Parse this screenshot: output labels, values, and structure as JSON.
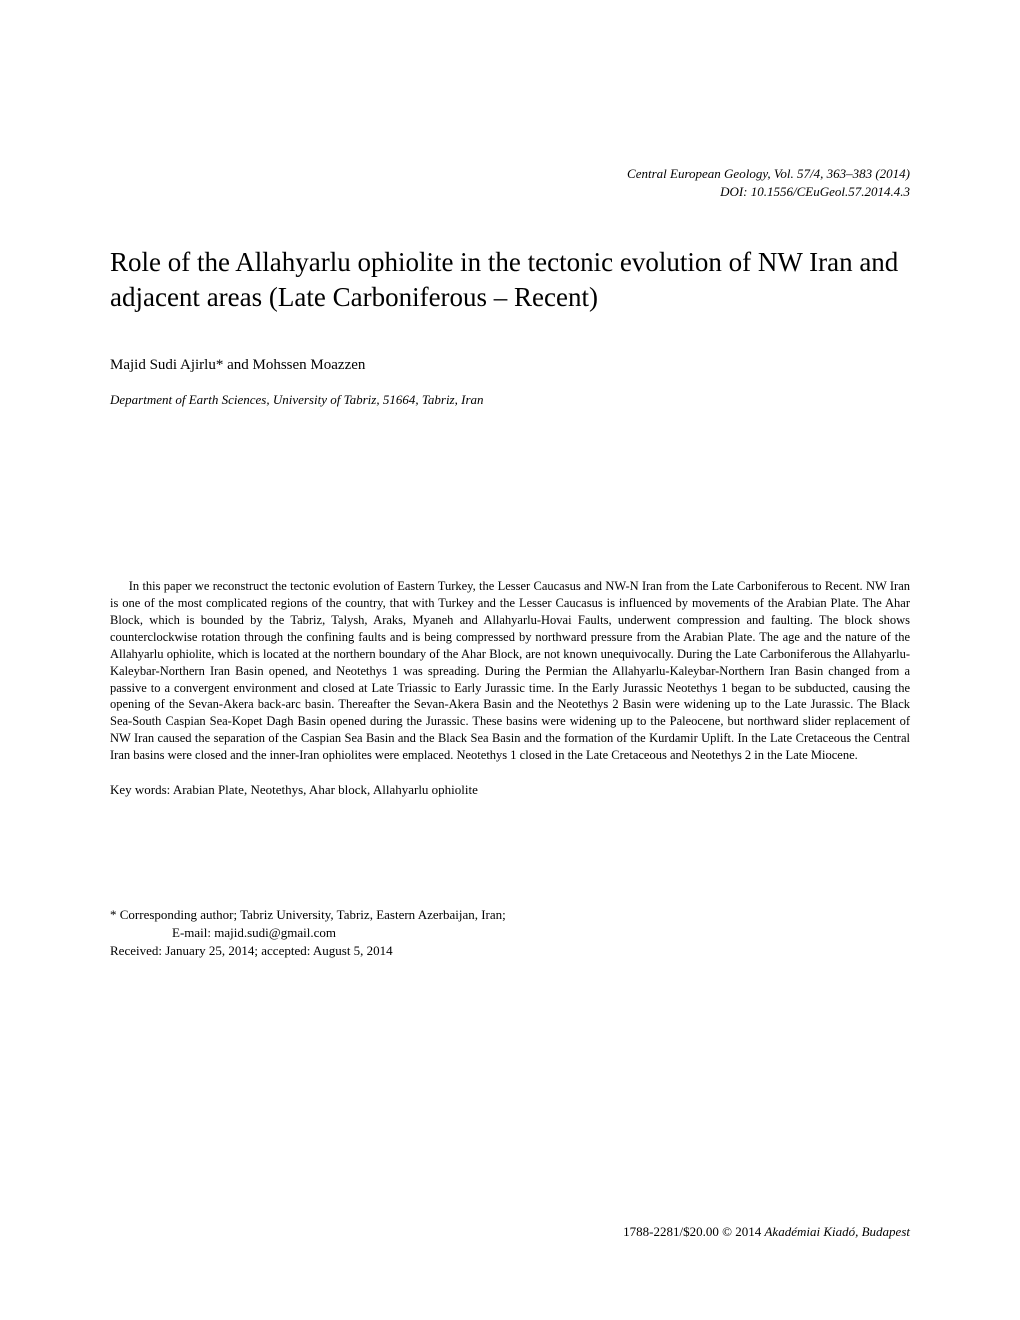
{
  "journal": {
    "line1": "Central European Geology, Vol. 57/4, 363–383 (2014)",
    "line2": "DOI: 10.1556/CEuGeol.57.2014.4.3"
  },
  "title": "Role of the Allahyarlu ophiolite in the tectonic evolution of NW Iran and adjacent areas (Late Carboniferous – Recent)",
  "authors": "Majid Sudi Ajirlu* and Mohssen Moazzen",
  "affiliation": "Department of Earth Sciences, University of Tabriz, 51664, Tabriz, Iran",
  "abstract": "In this paper we reconstruct the tectonic evolution of Eastern Turkey, the Lesser Caucasus and NW-N Iran from the Late Carboniferous to Recent. NW Iran is one of the most complicated regions of the country, that with Turkey and the Lesser Caucasus is influenced by movements of the Arabian Plate. The Ahar Block, which is bounded by the Tabriz, Talysh, Araks, Myaneh and Allahyarlu-Hovai Faults, underwent compression and faulting. The block shows counterclockwise rotation through the confining faults and is being compressed by northward pressure from the Arabian Plate. The age and the nature of the Allahyarlu ophiolite, which is located at the northern boundary of the Ahar Block, are not known unequivocally. During the Late Carboniferous the Allahyarlu-Kaleybar-Northern Iran Basin opened, and Neotethys 1 was spreading. During the Permian the Allahyarlu-Kaleybar-Northern Iran Basin changed from a passive to a convergent environment and closed at Late Triassic to Early Jurassic time. In the Early Jurassic Neotethys 1 began to be subducted, causing the opening of the Sevan-Akera back-arc basin. Thereafter the Sevan-Akera Basin and the Neotethys 2 Basin were widening up to the Late Jurassic. The Black Sea-South Caspian Sea-Kopet Dagh Basin opened during the Jurassic. These basins were widening up to the Paleocene, but northward slider replacement of NW Iran caused the separation of the Caspian Sea Basin and the Black Sea Basin and the formation of the Kurdamir Uplift. In the Late Cretaceous the Central Iran basins were closed and the inner-Iran ophiolites were emplaced. Neotethys 1 closed in the Late Cretaceous and Neotethys 2 in the Late Miocene.",
  "keywords": "Key words: Arabian Plate, Neotethys, Ahar block, Allahyarlu ophiolite",
  "corresponding": {
    "line1": "* Corresponding author; Tabriz University, Tabriz, Eastern Azerbaijan, Iran;",
    "line2": "E-mail: majid.sudi@gmail.com"
  },
  "received": "Received:   January 25, 2014; accepted: August 5, 2014",
  "publisher": {
    "issn": "1788-2281/$20.00  ©  2014  ",
    "name": "Akadémiai Kiadó, Budapest"
  }
}
